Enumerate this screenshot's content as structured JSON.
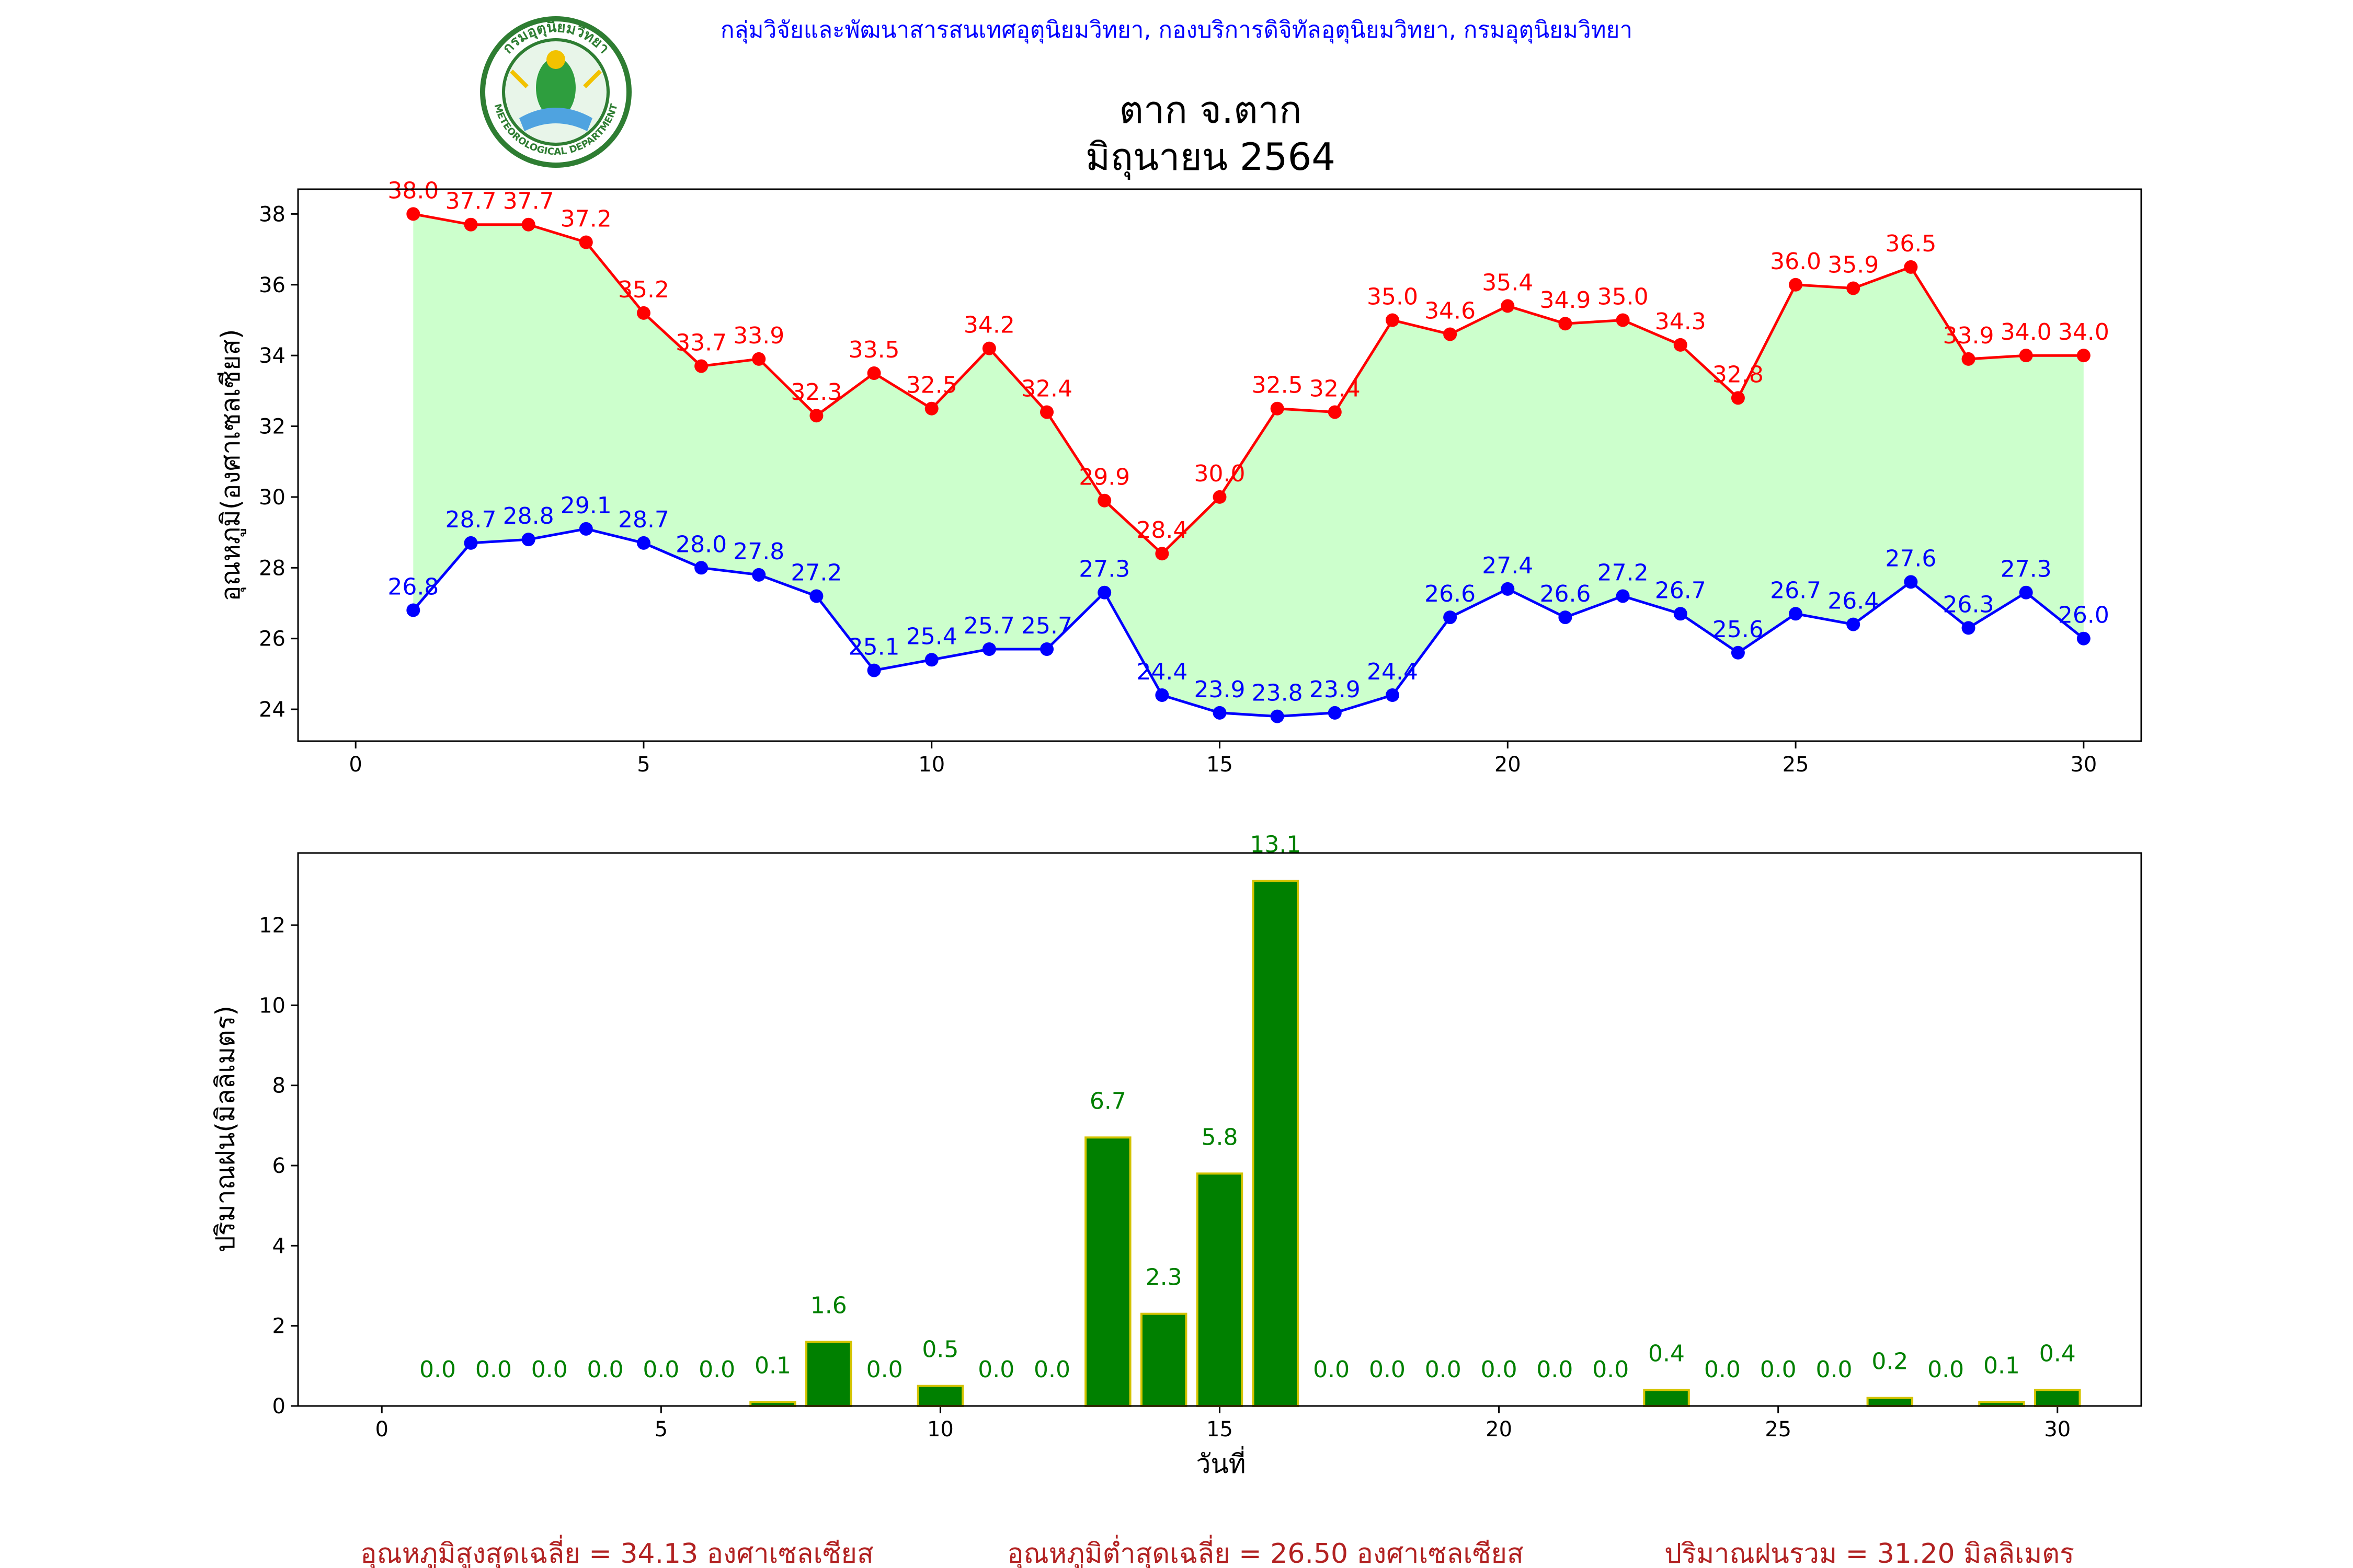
{
  "header": {
    "org_line": "กลุ่มวิจัยและพัฒนาสารสนเทศอุตุนิยมวิทยา, กองบริการดิจิทัลอุตุนิยมวิทยา, กรมอุตุนิยมวิทยา",
    "title_line1": "ตาก จ.ตาก",
    "title_line2": "มิถุนายน 2564",
    "logo_top_text": "กรมอุตุนิยมวิทยา",
    "logo_bottom_text": "METEOROLOGICAL DEPARTMENT"
  },
  "colors": {
    "max_temp": "#ff0000",
    "min_temp": "#0000ff",
    "temp_fill": "#ccffcc",
    "rain_bar": "#008000",
    "rain_edge": "#d4c400",
    "rain_label": "#008000",
    "footer_text": "#b22222",
    "org_text": "#0000ff"
  },
  "chart_data": [
    {
      "type": "line",
      "ylabel": "อุณหภูมิ(องศาเซลเซียส)",
      "xlim": [
        -1,
        31
      ],
      "ylim": [
        23.1,
        38.7
      ],
      "xticks": [
        0,
        5,
        10,
        15,
        20,
        25,
        30
      ],
      "yticks": [
        24,
        26,
        28,
        30,
        32,
        34,
        36,
        38
      ],
      "x": [
        1,
        2,
        3,
        4,
        5,
        6,
        7,
        8,
        9,
        10,
        11,
        12,
        13,
        14,
        15,
        16,
        17,
        18,
        19,
        20,
        21,
        22,
        23,
        24,
        25,
        26,
        27,
        28,
        29,
        30
      ],
      "series": [
        {
          "key": "max",
          "values": [
            38.0,
            37.7,
            37.7,
            37.2,
            35.2,
            33.7,
            33.9,
            32.3,
            33.5,
            32.5,
            34.2,
            32.4,
            29.9,
            28.4,
            30.0,
            32.5,
            32.4,
            35.0,
            34.6,
            35.4,
            34.9,
            35.0,
            34.3,
            32.8,
            36.0,
            35.9,
            36.5,
            33.9,
            34.0,
            34.0
          ]
        },
        {
          "key": "min",
          "values": [
            26.8,
            28.7,
            28.8,
            29.1,
            28.7,
            28.0,
            27.8,
            27.2,
            25.1,
            25.4,
            25.7,
            25.7,
            27.3,
            24.4,
            23.9,
            23.8,
            23.9,
            24.4,
            26.6,
            27.4,
            26.6,
            27.2,
            26.7,
            25.6,
            26.7,
            26.4,
            27.6,
            26.3,
            27.3,
            26.0
          ]
        }
      ]
    },
    {
      "type": "bar",
      "ylabel": "ปริมาณฝน(มิลลิเมตร)",
      "xlabel": "วันที่",
      "xlim": [
        -1.5,
        31.5
      ],
      "ylim": [
        0,
        13.8
      ],
      "xticks": [
        0,
        5,
        10,
        15,
        20,
        25,
        30
      ],
      "yticks": [
        0,
        2,
        4,
        6,
        8,
        10,
        12
      ],
      "x": [
        1,
        2,
        3,
        4,
        5,
        6,
        7,
        8,
        9,
        10,
        11,
        12,
        13,
        14,
        15,
        16,
        17,
        18,
        19,
        20,
        21,
        22,
        23,
        24,
        25,
        26,
        27,
        28,
        29,
        30
      ],
      "values": [
        0.0,
        0.0,
        0.0,
        0.0,
        0.0,
        0.0,
        0.1,
        1.6,
        0.0,
        0.5,
        0.0,
        0.0,
        6.7,
        2.3,
        5.8,
        13.1,
        0.0,
        0.0,
        0.0,
        0.0,
        0.0,
        0.0,
        0.4,
        0.0,
        0.0,
        0.0,
        0.2,
        0.0,
        0.1,
        0.4
      ]
    }
  ],
  "footer": {
    "avg_max": "อุณหภูมิสูงสุดเฉลี่ย = 34.13 องศาเซลเซียส",
    "avg_min": "อุณหภูมิต่ำสุดเฉลี่ย = 26.50 องศาเซลเซียส",
    "total_rain": "ปริมาณฝนรวม = 31.20 มิลลิเมตร"
  }
}
